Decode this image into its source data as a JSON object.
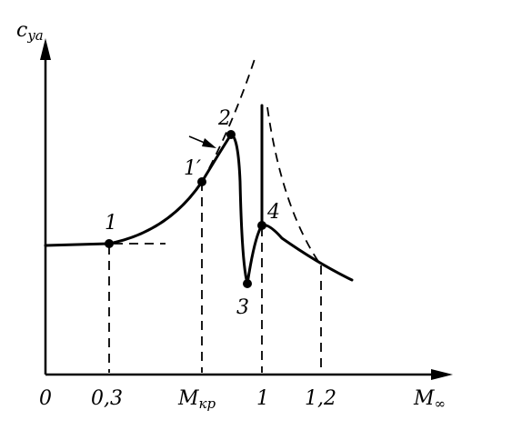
{
  "axes": {
    "y_label": {
      "main": "c",
      "sub": "ya"
    },
    "x_label": {
      "main": "M",
      "sub": "∞"
    }
  },
  "ticks": [
    {
      "main": "0"
    },
    {
      "main": "0,3"
    },
    {
      "main": "M",
      "sub": "кр"
    },
    {
      "main": "1"
    },
    {
      "main": "1,2"
    }
  ],
  "points": [
    "1",
    "1′",
    "2",
    "3",
    "4"
  ]
}
